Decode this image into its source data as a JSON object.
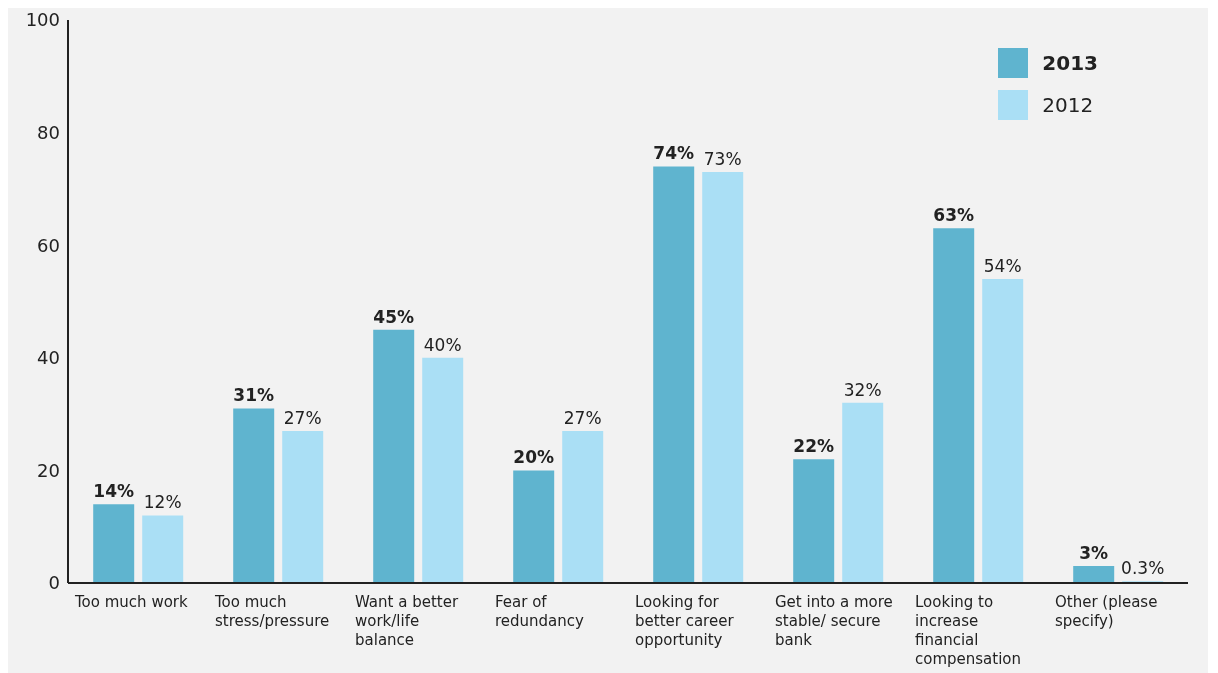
{
  "chart_data": {
    "type": "bar",
    "categories": [
      "Too much work",
      "Too much stress/pressure",
      "Want a better work/life balance",
      "Fear of redundancy",
      "Looking for better career opportunity",
      "Get into a more stable/ secure bank",
      "Looking to increase financial compensation",
      "Other (please specify)"
    ],
    "series": [
      {
        "name": "2013",
        "color": "#5fb4cf",
        "values": [
          14,
          31,
          45,
          20,
          74,
          22,
          63,
          3
        ],
        "value_labels": [
          "14%",
          "31%",
          "45%",
          "20%",
          "74%",
          "22%",
          "63%",
          "3%"
        ]
      },
      {
        "name": "2012",
        "color": "#aadff5",
        "values": [
          12,
          27,
          40,
          27,
          73,
          32,
          54,
          0.3
        ],
        "value_labels": [
          "12%",
          "27%",
          "40%",
          "27%",
          "73%",
          "32%",
          "54%",
          "0.3%"
        ]
      }
    ],
    "ylim": [
      0,
      100
    ],
    "yticks": [
      0,
      20,
      40,
      60,
      80,
      100
    ],
    "grid": false,
    "legend": "top right"
  }
}
